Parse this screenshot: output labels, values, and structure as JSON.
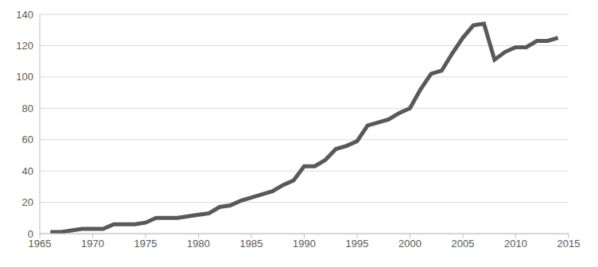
{
  "chart_data": {
    "type": "line",
    "x": [
      1966,
      1967,
      1968,
      1969,
      1970,
      1971,
      1972,
      1973,
      1974,
      1975,
      1976,
      1977,
      1978,
      1979,
      1980,
      1981,
      1982,
      1983,
      1984,
      1985,
      1986,
      1987,
      1988,
      1989,
      1990,
      1991,
      1992,
      1993,
      1994,
      1995,
      1996,
      1997,
      1998,
      1999,
      2000,
      2001,
      2002,
      2003,
      2004,
      2005,
      2006,
      2007,
      2008,
      2009,
      2010,
      2011,
      2012,
      2013,
      2014
    ],
    "values": [
      1,
      1,
      2,
      3,
      3,
      3,
      6,
      6,
      6,
      7,
      10,
      10,
      10,
      11,
      12,
      13,
      17,
      18,
      21,
      23,
      25,
      27,
      31,
      34,
      43,
      43,
      47,
      54,
      56,
      59,
      69,
      71,
      73,
      77,
      80,
      92,
      102,
      104,
      115,
      125,
      133,
      134,
      111,
      116,
      119,
      119,
      123,
      123,
      125
    ],
    "color": "#595959",
    "xlim": [
      1965,
      2015
    ],
    "xticks": [
      1965,
      1970,
      1975,
      1980,
      1985,
      1990,
      1995,
      2000,
      2005,
      2010,
      2015
    ],
    "ylim": [
      0,
      140
    ],
    "yticks": [
      0,
      20,
      40,
      60,
      80,
      100,
      120,
      140
    ],
    "grid": true
  }
}
